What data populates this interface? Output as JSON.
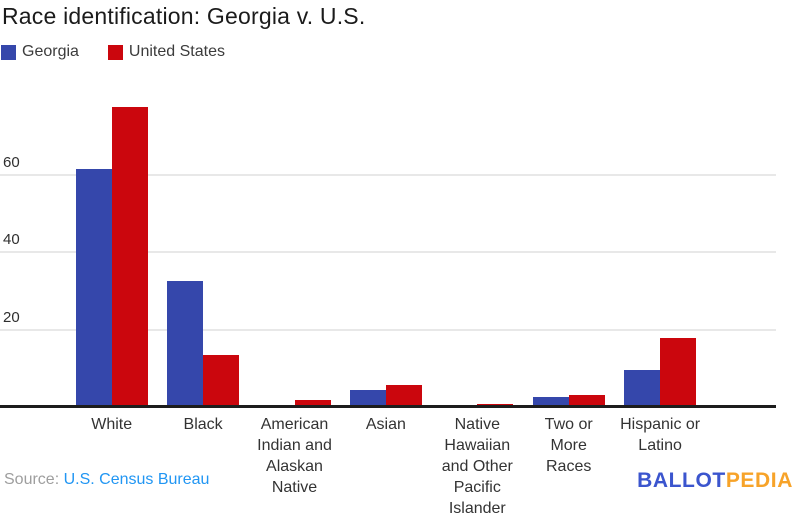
{
  "title": "Race identification: Georgia v. U.S.",
  "source": {
    "prefix": "Source:",
    "link_text": "U.S. Census Bureau"
  },
  "branding": {
    "part1": "BALLOT",
    "part2": "PEDIA",
    "part1_color": "#3b55ce",
    "part2_color": "#f7a329"
  },
  "chart_data": {
    "type": "bar",
    "title": "Race identification: Georgia v. U.S.",
    "xlabel": "",
    "ylabel": "",
    "categories": [
      "White",
      "Black",
      "American Indian and Alaskan Native",
      "Asian",
      "Native Hawaiian and Other Pacific Islander",
      "Two or More Races",
      "Hispanic or Latino"
    ],
    "category_label_lines": [
      [
        "White"
      ],
      [
        "Black"
      ],
      [
        "American",
        "Indian and",
        "Alaskan",
        "Native"
      ],
      [
        "Asian"
      ],
      [
        "Native",
        "Hawaiian",
        "and Other",
        "Pacific",
        "Islander"
      ],
      [
        "Two or",
        "More",
        "Races"
      ],
      [
        "Hispanic or",
        "Latino"
      ]
    ],
    "series": [
      {
        "name": "Georgia",
        "color": "#3547ab",
        "values": [
          61.5,
          32.4,
          0.6,
          4.3,
          0.2,
          2.5,
          9.5
        ]
      },
      {
        "name": "United States",
        "color": "#cb060d",
        "values": [
          77.4,
          13.3,
          1.8,
          5.8,
          0.7,
          3.0,
          17.9
        ]
      }
    ],
    "yticks": [
      20,
      40,
      60
    ],
    "ylim": [
      0,
      78
    ],
    "grid": true,
    "gridline_color": "#e8e8e8",
    "axis_color": "#1d1d1d",
    "legend_position": "top-left",
    "units": "percent"
  }
}
